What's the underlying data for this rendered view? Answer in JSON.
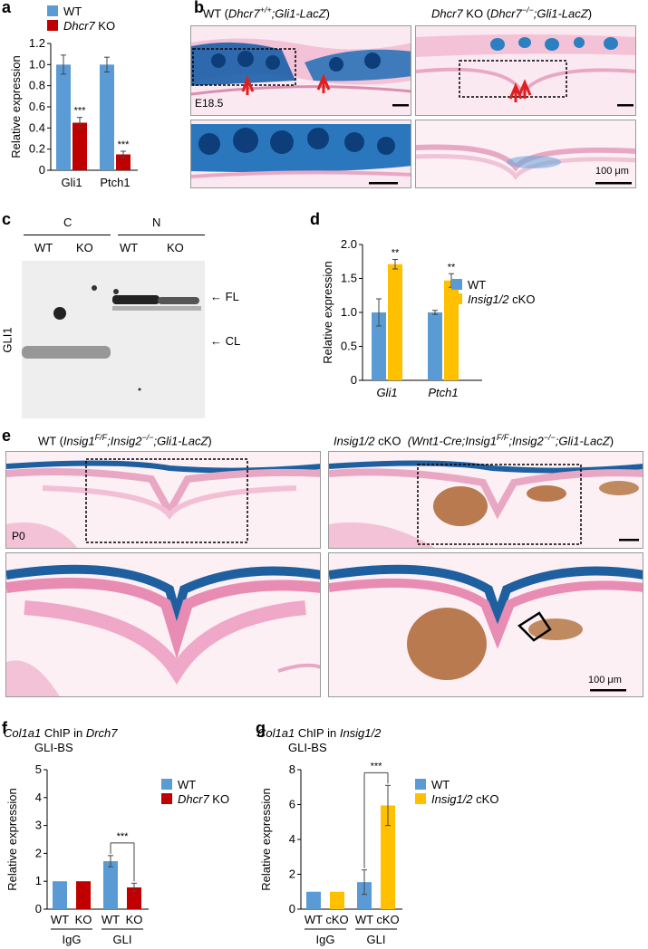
{
  "panels": {
    "a": "a",
    "b": "b",
    "c": "c",
    "d": "d",
    "e": "e",
    "f": "f",
    "g": "g"
  },
  "colors": {
    "wt": "#5b9bd5",
    "ko_red": "#c00000",
    "cko_yellow": "#ffc000",
    "lacz_blue": "#1f6fb5",
    "tissue_pink": "#f0b8d0"
  },
  "chart_data": [
    {
      "id": "a",
      "type": "bar",
      "categories": [
        "Gli1",
        "Ptch1"
      ],
      "series": [
        {
          "name": "WT",
          "values": [
            1.0,
            1.0
          ],
          "errors": [
            0.09,
            0.07
          ]
        },
        {
          "name": "Dhcr7 KO",
          "values": [
            0.45,
            0.15
          ],
          "errors": [
            0.05,
            0.03
          ]
        }
      ],
      "significance": [
        "***",
        "***"
      ],
      "ylabel": "Relative expression",
      "ylim": [
        0,
        1.2
      ],
      "yticks": [
        "0",
        "0.2",
        "0.4",
        "0.6",
        "0.8",
        "1.0",
        "1.2"
      ],
      "legend": "top-left"
    },
    {
      "id": "d",
      "type": "bar",
      "categories": [
        "Gli1",
        "Ptch1"
      ],
      "series": [
        {
          "name": "WT",
          "values": [
            1.0,
            1.0
          ],
          "errors": [
            0.2,
            0.03
          ]
        },
        {
          "name": "Insig1/2 cKO",
          "values": [
            1.71,
            1.47
          ],
          "errors": [
            0.07,
            0.1
          ]
        }
      ],
      "significance": [
        "**",
        "**"
      ],
      "ylabel": "Relative expression",
      "ylim": [
        0,
        2.0
      ],
      "yticks": [
        "0",
        "0.5",
        "1.0",
        "1.5",
        "2.0"
      ],
      "legend": "right"
    },
    {
      "id": "f",
      "type": "bar",
      "title": "Col1a1 ChIP in Drch7",
      "subtitle": "GLI-BS",
      "categories": [
        "WT",
        "KO",
        "WT",
        "KO"
      ],
      "groups": [
        "IgG",
        "GLI"
      ],
      "values": [
        1.0,
        1.0,
        1.72,
        0.78
      ],
      "errors": [
        0.0,
        0.0,
        0.2,
        0.15
      ],
      "bar_colors": [
        "#5b9bd5",
        "#c00000",
        "#5b9bd5",
        "#c00000"
      ],
      "series_legend": [
        "WT",
        "Dhcr7 KO"
      ],
      "significance": "***",
      "ylabel": "Relative expression",
      "ylim": [
        0,
        5
      ],
      "yticks": [
        "0",
        "1",
        "2",
        "3",
        "4",
        "5"
      ]
    },
    {
      "id": "g",
      "type": "bar",
      "title": "Col1a1 ChIP in Insig1/2",
      "subtitle": "GLI-BS",
      "categories": [
        "WT",
        "cKO",
        "WT",
        "cKO"
      ],
      "groups": [
        "IgG",
        "GLI"
      ],
      "values": [
        1.0,
        1.0,
        1.55,
        5.95
      ],
      "errors": [
        0.0,
        0.0,
        0.7,
        1.15
      ],
      "bar_colors": [
        "#5b9bd5",
        "#ffc000",
        "#5b9bd5",
        "#ffc000"
      ],
      "series_legend": [
        "WT",
        "Insig1/2 cKO"
      ],
      "significance": "***",
      "ylabel": "Relative expression",
      "ylim": [
        0,
        8
      ],
      "yticks": [
        "0",
        "2",
        "4",
        "6",
        "8"
      ]
    }
  ],
  "b": {
    "wt_title_prefix": "WT (",
    "wt_title_geno": "Dhcr7",
    "wt_title_sup": "+/+",
    "wt_title_rest": ";Gli1-LacZ",
    "wt_title_close": ")",
    "ko_title_geno": "Dhcr7",
    "ko_title_mid": " KO (",
    "ko_title_geno2": "Dhcr7",
    "ko_title_sup": "−/−",
    "ko_title_rest": ";Gli1-LacZ",
    "ko_title_close": ")",
    "stage": "E18.5",
    "scale": "100 μm"
  },
  "c": {
    "group_c": "C",
    "group_n": "N",
    "lanes": [
      "WT",
      "KO",
      "WT",
      "KO"
    ],
    "protein": "GLI1",
    "fl": "FL",
    "cl": "CL"
  },
  "e": {
    "wt_prefix": "WT (",
    "wt_geno": "Insig1",
    "wt_sup1": "F/F",
    "wt_mid": ";Insig2",
    "wt_sup2": "−/−",
    "wt_rest": ";Gli1-LacZ",
    "wt_close": ")",
    "cko_title": "Insig1/2",
    "cko_cko": " cKO",
    "cko_paren": "(Wnt1-Cre;Insig1",
    "cko_sup1": "F/F",
    "cko_mid": ";Insig2",
    "cko_sup2": "−/−",
    "cko_rest": ";Gli1-LacZ",
    "cko_close": ")",
    "stage": "P0",
    "scale": "100 μm"
  }
}
